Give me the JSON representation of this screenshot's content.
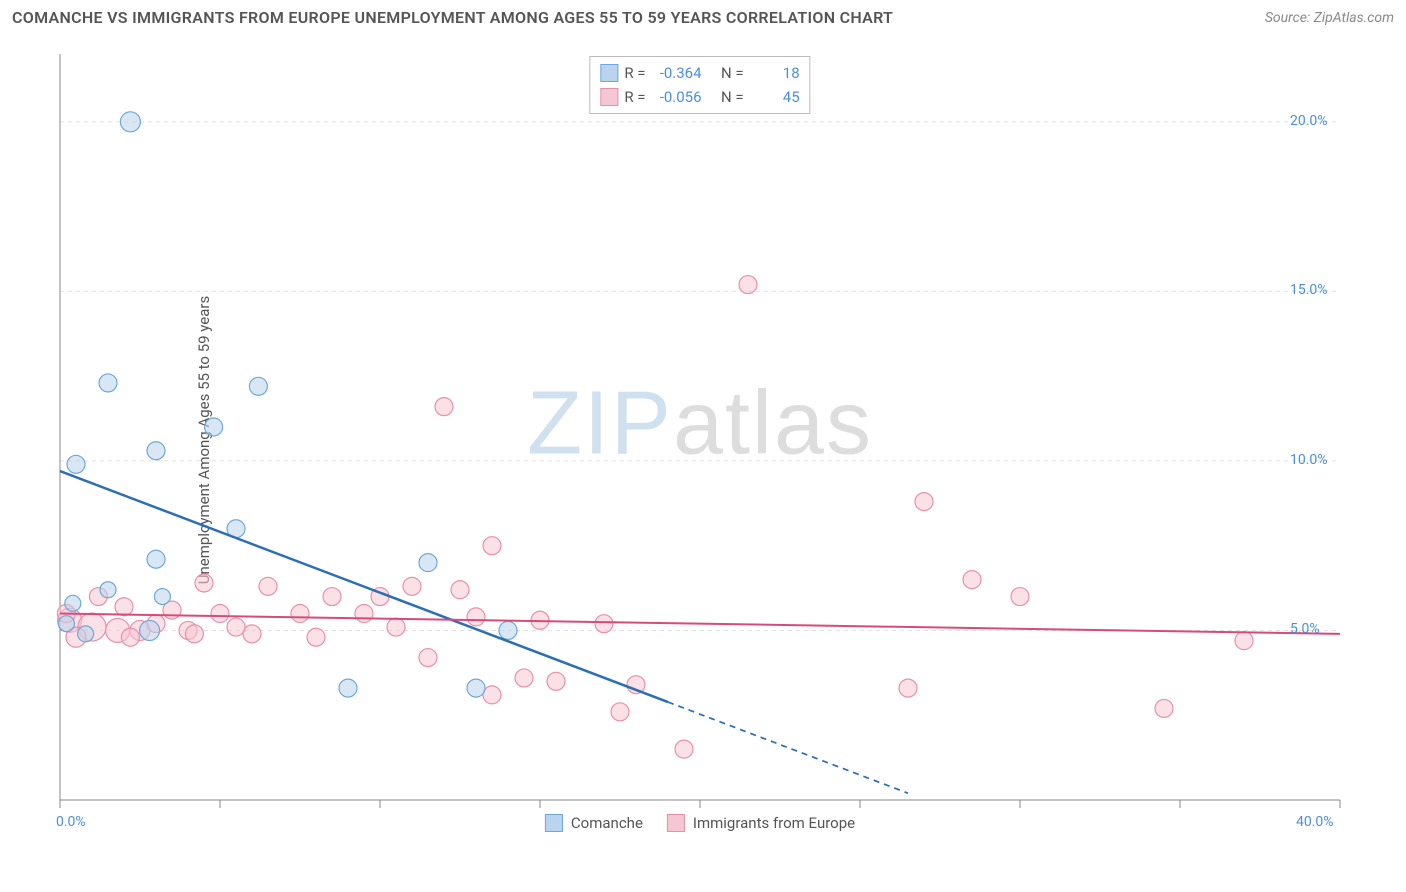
{
  "title": "COMANCHE VS IMMIGRANTS FROM EUROPE UNEMPLOYMENT AMONG AGES 55 TO 59 YEARS CORRELATION CHART",
  "source": "Source: ZipAtlas.com",
  "y_axis_label": "Unemployment Among Ages 55 to 59 years",
  "watermark_a": "ZIP",
  "watermark_b": "atlas",
  "chart": {
    "type": "scatter",
    "background_color": "#ffffff",
    "grid_color": "#e0e0e0",
    "axis_color": "#888888",
    "tick_label_color": "#4a90d9",
    "xlim": [
      0,
      40
    ],
    "ylim": [
      0,
      22
    ],
    "x_ticks": [
      0,
      5,
      10,
      15,
      20,
      25,
      30,
      35,
      40
    ],
    "y_ticks": [
      5,
      10,
      15,
      20
    ],
    "x_tick_labels": {
      "0": "0.0%",
      "40": "40.0%"
    },
    "y_tick_labels": {
      "5": "5.0%",
      "10": "10.0%",
      "15": "15.0%",
      "20": "20.0%"
    },
    "series": [
      {
        "name": "Comanche",
        "fill": "#b9d4ec",
        "stroke": "#6ea8d8",
        "fill_opacity": 0.55,
        "r_stat": "-0.364",
        "n_stat": "18",
        "trend": {
          "x1": 0,
          "y1": 9.7,
          "x2": 26.5,
          "y2": 0.2,
          "solid_until_x": 19,
          "color": "#2c6fb3",
          "width": 2.5
        },
        "points": [
          {
            "x": 2.2,
            "y": 20.0,
            "r": 10
          },
          {
            "x": 1.5,
            "y": 12.3,
            "r": 9
          },
          {
            "x": 6.2,
            "y": 12.2,
            "r": 9
          },
          {
            "x": 4.8,
            "y": 11.0,
            "r": 9
          },
          {
            "x": 3.0,
            "y": 10.3,
            "r": 9
          },
          {
            "x": 0.5,
            "y": 9.9,
            "r": 9
          },
          {
            "x": 5.5,
            "y": 8.0,
            "r": 9
          },
          {
            "x": 3.0,
            "y": 7.1,
            "r": 9
          },
          {
            "x": 11.5,
            "y": 7.0,
            "r": 9
          },
          {
            "x": 1.5,
            "y": 6.2,
            "r": 8
          },
          {
            "x": 3.2,
            "y": 6.0,
            "r": 8
          },
          {
            "x": 0.4,
            "y": 5.8,
            "r": 8
          },
          {
            "x": 2.8,
            "y": 5.0,
            "r": 10
          },
          {
            "x": 0.2,
            "y": 5.2,
            "r": 8
          },
          {
            "x": 14.0,
            "y": 5.0,
            "r": 9
          },
          {
            "x": 9.0,
            "y": 3.3,
            "r": 9
          },
          {
            "x": 13.0,
            "y": 3.3,
            "r": 9
          },
          {
            "x": 0.8,
            "y": 4.9,
            "r": 8
          }
        ]
      },
      {
        "name": "Immigrants from Europe",
        "fill": "#f5c6d3",
        "stroke": "#e890aa",
        "fill_opacity": 0.55,
        "r_stat": "-0.056",
        "n_stat": "45",
        "trend": {
          "x1": 0,
          "y1": 5.5,
          "x2": 40,
          "y2": 4.9,
          "solid_until_x": 40,
          "color": "#d84a7a",
          "width": 2
        },
        "points": [
          {
            "x": 21.5,
            "y": 15.2,
            "r": 9
          },
          {
            "x": 12.0,
            "y": 11.6,
            "r": 9
          },
          {
            "x": 27.0,
            "y": 8.8,
            "r": 9
          },
          {
            "x": 13.5,
            "y": 7.5,
            "r": 9
          },
          {
            "x": 28.5,
            "y": 6.5,
            "r": 9
          },
          {
            "x": 4.5,
            "y": 6.4,
            "r": 9
          },
          {
            "x": 6.5,
            "y": 6.3,
            "r": 9
          },
          {
            "x": 11.0,
            "y": 6.3,
            "r": 9
          },
          {
            "x": 12.5,
            "y": 6.2,
            "r": 9
          },
          {
            "x": 8.5,
            "y": 6.0,
            "r": 9
          },
          {
            "x": 10.0,
            "y": 6.0,
            "r": 9
          },
          {
            "x": 30.0,
            "y": 6.0,
            "r": 9
          },
          {
            "x": 2.0,
            "y": 5.7,
            "r": 9
          },
          {
            "x": 3.5,
            "y": 5.6,
            "r": 9
          },
          {
            "x": 5.0,
            "y": 5.5,
            "r": 9
          },
          {
            "x": 7.5,
            "y": 5.5,
            "r": 9
          },
          {
            "x": 9.5,
            "y": 5.5,
            "r": 9
          },
          {
            "x": 13.0,
            "y": 5.4,
            "r": 9
          },
          {
            "x": 15.0,
            "y": 5.3,
            "r": 9
          },
          {
            "x": 17.0,
            "y": 5.2,
            "r": 9
          },
          {
            "x": 0.3,
            "y": 5.3,
            "r": 12
          },
          {
            "x": 1.0,
            "y": 5.1,
            "r": 14
          },
          {
            "x": 1.8,
            "y": 5.0,
            "r": 12
          },
          {
            "x": 0.5,
            "y": 4.8,
            "r": 10
          },
          {
            "x": 2.5,
            "y": 5.0,
            "r": 10
          },
          {
            "x": 4.0,
            "y": 5.0,
            "r": 9
          },
          {
            "x": 6.0,
            "y": 4.9,
            "r": 9
          },
          {
            "x": 37.0,
            "y": 4.7,
            "r": 9
          },
          {
            "x": 11.5,
            "y": 4.2,
            "r": 9
          },
          {
            "x": 14.5,
            "y": 3.6,
            "r": 9
          },
          {
            "x": 15.5,
            "y": 3.5,
            "r": 9
          },
          {
            "x": 13.5,
            "y": 3.1,
            "r": 9
          },
          {
            "x": 18.0,
            "y": 3.4,
            "r": 9
          },
          {
            "x": 17.5,
            "y": 2.6,
            "r": 9
          },
          {
            "x": 26.5,
            "y": 3.3,
            "r": 9
          },
          {
            "x": 34.5,
            "y": 2.7,
            "r": 9
          },
          {
            "x": 19.5,
            "y": 1.5,
            "r": 9
          },
          {
            "x": 0.2,
            "y": 5.5,
            "r": 9
          },
          {
            "x": 1.2,
            "y": 6.0,
            "r": 9
          },
          {
            "x": 2.2,
            "y": 4.8,
            "r": 9
          },
          {
            "x": 3.0,
            "y": 5.2,
            "r": 9
          },
          {
            "x": 4.2,
            "y": 4.9,
            "r": 9
          },
          {
            "x": 5.5,
            "y": 5.1,
            "r": 9
          },
          {
            "x": 8.0,
            "y": 4.8,
            "r": 9
          },
          {
            "x": 10.5,
            "y": 5.1,
            "r": 9
          }
        ]
      }
    ]
  },
  "legend_stats_header": {
    "r": "R =",
    "n": "N ="
  },
  "legend_bottom": [
    {
      "label": "Comanche"
    },
    {
      "label": "Immigrants from Europe"
    }
  ]
}
